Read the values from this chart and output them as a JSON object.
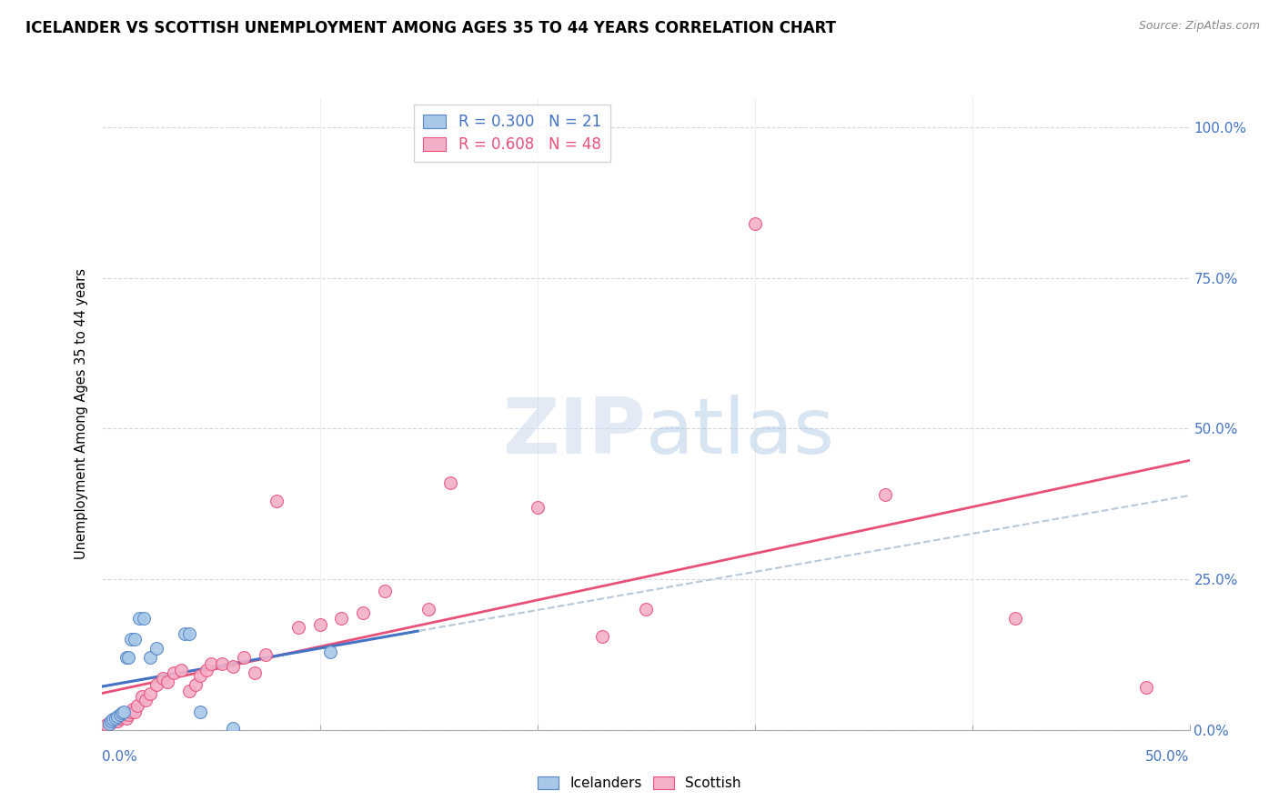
{
  "title": "ICELANDER VS SCOTTISH UNEMPLOYMENT AMONG AGES 35 TO 44 YEARS CORRELATION CHART",
  "source": "Source: ZipAtlas.com",
  "ylabel": "Unemployment Among Ages 35 to 44 years",
  "yticks_labels": [
    "0.0%",
    "25.0%",
    "50.0%",
    "75.0%",
    "100.0%"
  ],
  "yticks_values": [
    0.0,
    0.25,
    0.5,
    0.75,
    1.0
  ],
  "xlim": [
    0.0,
    0.5
  ],
  "ylim": [
    0.0,
    1.05
  ],
  "legend_icelander_R": "0.300",
  "legend_icelander_N": "21",
  "legend_scottish_R": "0.608",
  "legend_scottish_N": "48",
  "icelander_color": "#a8c8e8",
  "scottish_color": "#f4b0c8",
  "icelander_edge_color": "#5585c8",
  "scottish_edge_color": "#e8507a",
  "icelander_line_color": "#4472c4",
  "scottish_line_color": "#e8507a",
  "dashed_line_color": "#b8c8d8",
  "grid_color": "#d0d8e0",
  "icelander_x": [
    0.003,
    0.004,
    0.005,
    0.006,
    0.007,
    0.008,
    0.009,
    0.01,
    0.011,
    0.012,
    0.013,
    0.015,
    0.017,
    0.019,
    0.022,
    0.025,
    0.038,
    0.04,
    0.045,
    0.06,
    0.105
  ],
  "icelander_y": [
    0.01,
    0.015,
    0.018,
    0.02,
    0.022,
    0.025,
    0.028,
    0.03,
    0.12,
    0.12,
    0.15,
    0.15,
    0.185,
    0.185,
    0.12,
    0.135,
    0.16,
    0.16,
    0.03,
    0.002,
    0.13
  ],
  "scottish_x": [
    0.002,
    0.003,
    0.004,
    0.005,
    0.006,
    0.007,
    0.008,
    0.009,
    0.01,
    0.011,
    0.012,
    0.013,
    0.014,
    0.015,
    0.016,
    0.018,
    0.02,
    0.022,
    0.025,
    0.028,
    0.03,
    0.033,
    0.036,
    0.04,
    0.043,
    0.045,
    0.048,
    0.05,
    0.055,
    0.06,
    0.065,
    0.07,
    0.075,
    0.08,
    0.09,
    0.1,
    0.11,
    0.12,
    0.13,
    0.15,
    0.16,
    0.2,
    0.23,
    0.25,
    0.3,
    0.36,
    0.42,
    0.48
  ],
  "scottish_y": [
    0.008,
    0.01,
    0.012,
    0.015,
    0.018,
    0.015,
    0.02,
    0.022,
    0.025,
    0.02,
    0.025,
    0.03,
    0.035,
    0.03,
    0.04,
    0.055,
    0.05,
    0.06,
    0.075,
    0.085,
    0.08,
    0.095,
    0.1,
    0.065,
    0.075,
    0.09,
    0.1,
    0.11,
    0.11,
    0.105,
    0.12,
    0.095,
    0.125,
    0.38,
    0.17,
    0.175,
    0.185,
    0.195,
    0.23,
    0.2,
    0.41,
    0.37,
    0.155,
    0.2,
    0.84,
    0.39,
    0.185,
    0.07
  ],
  "icelander_trend_x_end": 0.145,
  "scottish_trend_x_end": 0.5,
  "dashed_trend_x_end": 0.5
}
